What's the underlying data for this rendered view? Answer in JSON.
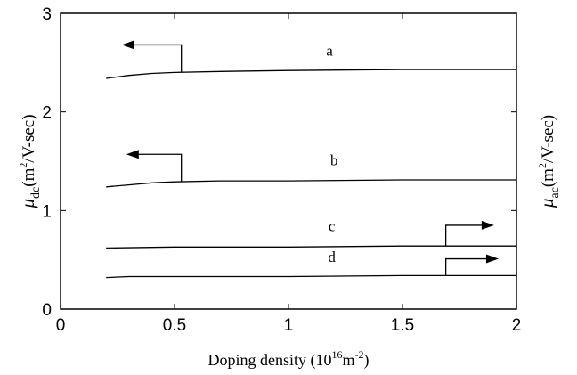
{
  "chart_data": {
    "type": "line",
    "xlabel": {
      "text": "Doping density (10",
      "sup1": "16",
      "mid": "m",
      "sup2": "-2",
      "end": ")"
    },
    "ylabel_left": {
      "mu": "μ",
      "sub": "dc",
      "open": "(m",
      "sup": "2",
      "unit": "/V-sec)"
    },
    "ylabel_right": {
      "mu": "μ",
      "sub": "ac",
      "open": "(m",
      "sup": "2",
      "unit": "/V-sec)"
    },
    "xlim": [
      0,
      2
    ],
    "ylim": [
      0,
      3
    ],
    "xticks": [
      0,
      0.5,
      1,
      1.5,
      2
    ],
    "xtick_labels": [
      "0",
      "0.5",
      "1",
      "1.5",
      "2"
    ],
    "yticks": [
      0,
      1,
      2,
      3
    ],
    "ytick_labels": [
      "0",
      "1",
      "2",
      "3"
    ],
    "grid": false,
    "series": [
      {
        "name": "a",
        "x": [
          0.2,
          0.3,
          0.4,
          0.5,
          0.7,
          1.0,
          1.5,
          2.0
        ],
        "y": [
          2.34,
          2.37,
          2.39,
          2.4,
          2.41,
          2.42,
          2.43,
          2.43
        ]
      },
      {
        "name": "b",
        "x": [
          0.2,
          0.3,
          0.4,
          0.5,
          0.7,
          1.0,
          1.5,
          2.0
        ],
        "y": [
          1.24,
          1.26,
          1.28,
          1.29,
          1.3,
          1.3,
          1.31,
          1.31
        ]
      },
      {
        "name": "c",
        "x": [
          0.2,
          0.5,
          1.0,
          1.5,
          2.0
        ],
        "y": [
          0.62,
          0.63,
          0.63,
          0.64,
          0.64
        ]
      },
      {
        "name": "d",
        "x": [
          0.2,
          0.3,
          0.5,
          1.0,
          1.5,
          2.0
        ],
        "y": [
          0.32,
          0.33,
          0.33,
          0.33,
          0.34,
          0.34
        ]
      }
    ],
    "curve_labels": [
      {
        "text": "a",
        "x": 1.18,
        "y": 2.57
      },
      {
        "text": "b",
        "x": 1.2,
        "y": 1.46
      },
      {
        "text": "c",
        "x": 1.19,
        "y": 0.79
      },
      {
        "text": "d",
        "x": 1.19,
        "y": 0.48
      }
    ],
    "arrows": [
      {
        "series": "a",
        "axis": "left",
        "x_start": 0.53,
        "x_end": 0.28,
        "y_base": 2.4,
        "y_top": 2.68
      },
      {
        "series": "b",
        "axis": "left",
        "x_start": 0.53,
        "x_end": 0.3,
        "y_base": 1.29,
        "y_top": 1.57
      },
      {
        "series": "c",
        "axis": "right",
        "x_start": 1.69,
        "x_end": 1.89,
        "y_base": 0.64,
        "y_top": 0.85
      },
      {
        "series": "d",
        "axis": "right",
        "x_start": 1.69,
        "x_end": 1.91,
        "y_base": 0.34,
        "y_top": 0.51
      }
    ]
  }
}
